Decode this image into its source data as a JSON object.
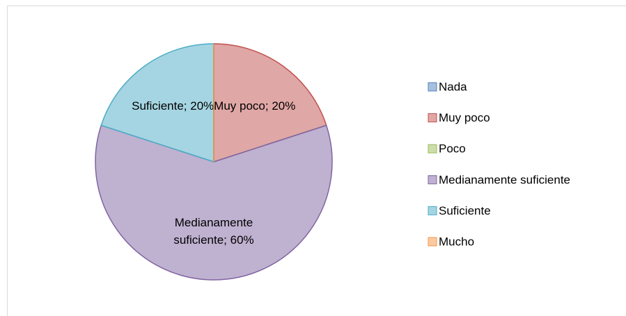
{
  "chart_data": {
    "type": "pie",
    "categories": [
      "Nada",
      "Muy poco",
      "Poco",
      "Medianamente suficiente",
      "Suficiente",
      "Mucho"
    ],
    "values": [
      0,
      20,
      0,
      60,
      20,
      0
    ],
    "value_labels": [
      null,
      "Muy poco; 20%",
      null,
      "Medianamente suficiente; 60%",
      "Suficiente; 20%",
      null
    ],
    "colors": [
      "#4f81bd",
      "#c0504d",
      "#9bbb59",
      "#8064a2",
      "#4bacc6",
      "#f79646"
    ],
    "legend": "right"
  }
}
